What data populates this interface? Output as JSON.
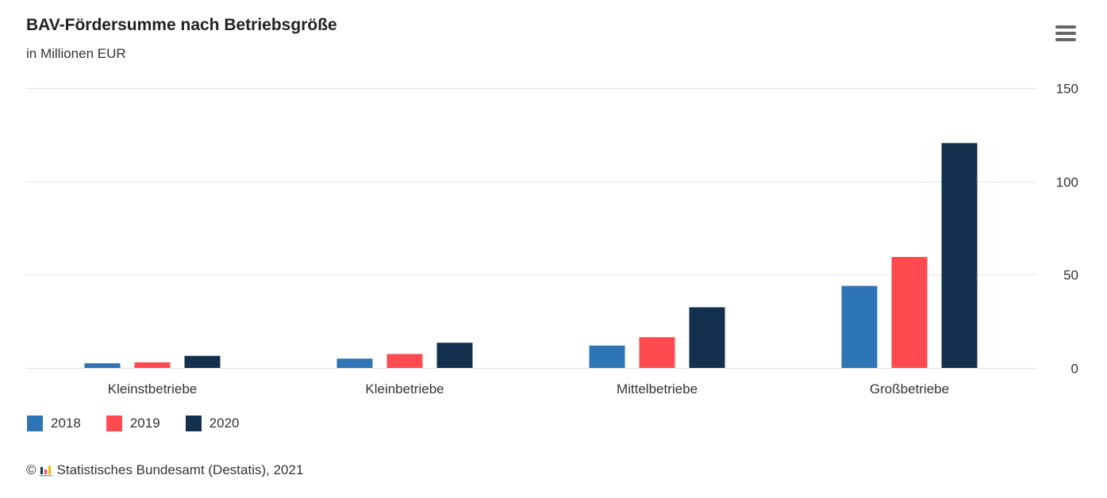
{
  "header": {
    "menu_icon": "hamburger-menu-icon"
  },
  "chart_data": {
    "type": "bar",
    "title": "BAV-Fördersumme nach Betriebsgröße",
    "subtitle": "in Millionen EUR",
    "categories": [
      "Kleinstbetriebe",
      "Kleinbetriebe",
      "Mittelbetriebe",
      "Großbetriebe"
    ],
    "series": [
      {
        "name": "2018",
        "color": "#2e75b6",
        "values": [
          2.5,
          5,
          12,
          44
        ]
      },
      {
        "name": "2019",
        "color": "#ff4a50",
        "values": [
          3,
          7.5,
          16.5,
          59.5
        ]
      },
      {
        "name": "2020",
        "color": "#13304f",
        "values": [
          6.5,
          13.5,
          32.5,
          120.5
        ]
      }
    ],
    "ylim": [
      0,
      150
    ],
    "yticks": [
      0,
      50,
      100,
      150
    ],
    "y_axis_position": "right",
    "grid": true,
    "legend_position": "bottom-left",
    "xlabel": "",
    "ylabel": ""
  },
  "credits": {
    "copyright_symbol": "©",
    "text": "Statistisches Bundesamt (Destatis), 2021",
    "logo_icon": "destatis-logo-icon"
  }
}
